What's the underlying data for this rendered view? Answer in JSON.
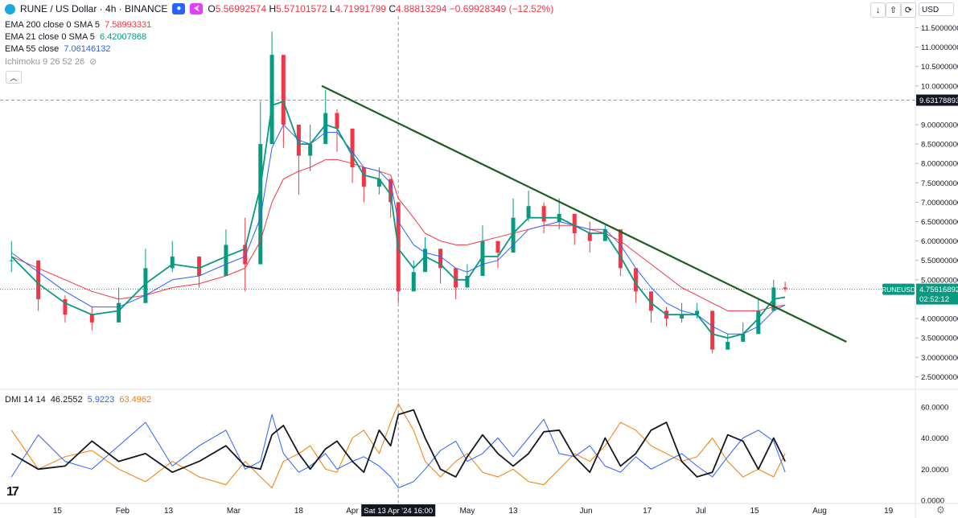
{
  "header": {
    "symbol_title": "RUNE / US Dollar · 4h · BINANCE",
    "ohlc": {
      "open_label": "O",
      "open": "5.56992574",
      "high_label": "H",
      "high": "5.57101572",
      "low_label": "L",
      "low": "4.71991799",
      "close_label": "C",
      "close": "4.88813294",
      "change": "−0.69928349 (−12.52%)"
    }
  },
  "toolbar": {
    "currency": "USD"
  },
  "indicators": [
    {
      "label": "EMA 200 close 0 SMA 5",
      "value": "7.58993331",
      "color": "#f23645"
    },
    {
      "label": "EMA 21 close 0 SMA 5",
      "value": "6.42007868",
      "color": "#089981"
    },
    {
      "label": "EMA 55 close",
      "value": "7.06146132",
      "color": "#2962ff"
    },
    {
      "label": "Ichimoku 9 26 52 26",
      "value": "",
      "color": "#9598a1"
    }
  ],
  "dmi_legend": {
    "label": "DMI 14 14",
    "adx": "46.2552",
    "plus_di": "5.9223",
    "minus_di": "63.4962",
    "adx_color": "#131722",
    "plus_color": "#2962ff",
    "minus_color": "#f57c00"
  },
  "price_axis": {
    "ticks": [
      "11.50000000",
      "11.00000000",
      "10.50000000",
      "10.00000000",
      "9.00000000",
      "8.50000000",
      "8.00000000",
      "7.50000000",
      "7.00000000",
      "6.50000000",
      "6.00000000",
      "5.50000000",
      "5.00000000",
      "4.00000000",
      "3.50000000",
      "3.00000000",
      "2.50000000"
    ],
    "crosshair_label": "9.63178893",
    "last_symbol": "RUNEUSD",
    "last_price": "4.75616892",
    "countdown": "02:52:12"
  },
  "dmi_axis": {
    "ticks": [
      "60.0000",
      "40.0000",
      "20.0000",
      "0.0000"
    ]
  },
  "time_axis": {
    "labels": [
      "15",
      "Feb",
      "13",
      "Mar",
      "18",
      "Apr",
      "May",
      "13",
      "Jun",
      "17",
      "Jul",
      "15",
      "Aug",
      "19"
    ],
    "crosshair_label": "Sat 13 Apr '24 16:00"
  },
  "chart_data": {
    "type": "candlestick",
    "interval": "4h",
    "price_ylim": [
      2.3,
      11.8
    ],
    "price_series": {
      "dates": [
        "2024-01-03",
        "2024-01-10",
        "2024-01-17",
        "2024-01-24",
        "2024-01-31",
        "2024-02-07",
        "2024-02-14",
        "2024-02-21",
        "2024-02-28",
        "2024-03-04",
        "2024-03-08",
        "2024-03-11",
        "2024-03-14",
        "2024-03-18",
        "2024-03-21",
        "2024-03-25",
        "2024-03-28",
        "2024-04-01",
        "2024-04-04",
        "2024-04-08",
        "2024-04-11",
        "2024-04-13",
        "2024-04-17",
        "2024-04-20",
        "2024-04-24",
        "2024-04-28",
        "2024-05-01",
        "2024-05-05",
        "2024-05-09",
        "2024-05-13",
        "2024-05-17",
        "2024-05-21",
        "2024-05-25",
        "2024-05-29",
        "2024-06-02",
        "2024-06-06",
        "2024-06-10",
        "2024-06-14",
        "2024-06-18",
        "2024-06-22",
        "2024-06-26",
        "2024-06-30",
        "2024-07-04",
        "2024-07-08",
        "2024-07-12",
        "2024-07-16",
        "2024-07-20",
        "2024-07-23"
      ],
      "close": [
        5.5,
        4.5,
        4.1,
        3.9,
        4.4,
        5.3,
        5.6,
        5.1,
        5.9,
        5.4,
        8.5,
        10.8,
        9.0,
        8.2,
        8.5,
        9.3,
        8.9,
        7.9,
        7.4,
        7.6,
        7.0,
        4.7,
        5.2,
        5.8,
        5.3,
        4.8,
        5.1,
        6.0,
        5.7,
        6.6,
        6.9,
        6.5,
        6.7,
        6.2,
        6.0,
        6.3,
        5.3,
        4.7,
        4.2,
        4.0,
        4.1,
        4.2,
        3.2,
        3.4,
        3.6,
        4.2,
        4.8,
        4.76
      ],
      "high": [
        6.0,
        5.2,
        4.6,
        4.3,
        4.8,
        5.8,
        6.0,
        5.6,
        6.3,
        6.6,
        9.6,
        11.4,
        10.3,
        8.8,
        9.0,
        9.9,
        9.4,
        8.4,
        7.9,
        7.9,
        7.5,
        5.6,
        5.5,
        6.1,
        5.7,
        5.3,
        5.4,
        6.4,
        6.0,
        7.1,
        7.3,
        7.0,
        7.1,
        6.6,
        6.5,
        6.4,
        6.2,
        5.0,
        4.5,
        4.3,
        4.4,
        4.4,
        3.6,
        3.6,
        3.9,
        4.5,
        5.0,
        4.95
      ],
      "low": [
        5.2,
        4.2,
        3.9,
        3.7,
        4.1,
        5.0,
        5.2,
        4.8,
        5.5,
        4.7,
        7.8,
        9.5,
        8.4,
        7.2,
        7.8,
        8.6,
        8.3,
        7.5,
        7.0,
        7.2,
        6.6,
        4.4,
        4.8,
        5.4,
        4.9,
        4.5,
        4.8,
        5.6,
        5.3,
        6.2,
        6.5,
        6.2,
        6.3,
        5.9,
        5.7,
        6.0,
        5.1,
        4.4,
        3.9,
        3.8,
        3.9,
        4.0,
        3.1,
        3.2,
        3.4,
        3.8,
        4.4,
        4.7
      ],
      "ema21": [
        5.6,
        4.9,
        4.4,
        4.1,
        4.2,
        4.9,
        5.4,
        5.3,
        5.6,
        5.8,
        7.4,
        9.5,
        9.6,
        8.5,
        8.5,
        9.0,
        8.9,
        8.2,
        7.7,
        7.6,
        7.2,
        5.8,
        5.3,
        5.6,
        5.4,
        5.0,
        5.0,
        5.6,
        5.6,
        6.2,
        6.6,
        6.6,
        6.6,
        6.4,
        6.2,
        6.2,
        5.6,
        4.9,
        4.4,
        4.1,
        4.1,
        4.1,
        3.6,
        3.5,
        3.6,
        4.0,
        4.5,
        4.55
      ],
      "ema55": [
        5.7,
        5.2,
        4.7,
        4.3,
        4.3,
        4.6,
        5.0,
        5.1,
        5.4,
        5.6,
        6.6,
        8.4,
        9.0,
        8.6,
        8.5,
        8.8,
        8.8,
        8.3,
        7.9,
        7.8,
        7.5,
        6.5,
        5.9,
        5.7,
        5.6,
        5.3,
        5.2,
        5.4,
        5.5,
        5.9,
        6.3,
        6.4,
        6.5,
        6.4,
        6.3,
        6.3,
        5.9,
        5.3,
        4.8,
        4.4,
        4.2,
        4.1,
        3.8,
        3.6,
        3.6,
        3.8,
        4.2,
        4.35
      ],
      "ema200": [
        5.6,
        5.3,
        5.0,
        4.7,
        4.5,
        4.6,
        4.8,
        4.9,
        5.1,
        5.3,
        6.0,
        7.0,
        7.6,
        7.8,
        7.9,
        8.1,
        8.1,
        8.0,
        7.9,
        7.8,
        7.7,
        7.1,
        6.6,
        6.2,
        6.0,
        5.9,
        5.9,
        6.0,
        6.1,
        6.2,
        6.3,
        6.4,
        6.4,
        6.4,
        6.3,
        6.2,
        6.0,
        5.7,
        5.4,
        5.1,
        4.8,
        4.6,
        4.4,
        4.2,
        4.2,
        4.2,
        4.3,
        4.35
      ]
    },
    "trendline": {
      "start": [
        "2024-03-24",
        10.0
      ],
      "end": [
        "2024-08-08",
        3.4
      ],
      "color": "#1b5e20"
    },
    "dmi": {
      "ylim": [
        0,
        64
      ],
      "dates": [
        "2024-01-03",
        "2024-01-10",
        "2024-01-17",
        "2024-01-24",
        "2024-01-31",
        "2024-02-07",
        "2024-02-14",
        "2024-02-21",
        "2024-02-28",
        "2024-03-04",
        "2024-03-08",
        "2024-03-11",
        "2024-03-14",
        "2024-03-18",
        "2024-03-21",
        "2024-03-25",
        "2024-03-28",
        "2024-04-01",
        "2024-04-04",
        "2024-04-08",
        "2024-04-11",
        "2024-04-13",
        "2024-04-17",
        "2024-04-20",
        "2024-04-24",
        "2024-04-28",
        "2024-05-01",
        "2024-05-05",
        "2024-05-09",
        "2024-05-13",
        "2024-05-17",
        "2024-05-21",
        "2024-05-25",
        "2024-05-29",
        "2024-06-02",
        "2024-06-06",
        "2024-06-10",
        "2024-06-14",
        "2024-06-18",
        "2024-06-22",
        "2024-06-26",
        "2024-06-30",
        "2024-07-04",
        "2024-07-08",
        "2024-07-12",
        "2024-07-16",
        "2024-07-20",
        "2024-07-23"
      ],
      "adx": [
        30,
        20,
        22,
        38,
        25,
        30,
        18,
        25,
        35,
        22,
        20,
        42,
        48,
        30,
        20,
        33,
        38,
        25,
        18,
        45,
        35,
        55,
        58,
        40,
        20,
        15,
        28,
        42,
        30,
        22,
        30,
        44,
        45,
        28,
        18,
        40,
        22,
        30,
        45,
        50,
        25,
        15,
        18,
        42,
        38,
        20,
        40,
        25
      ],
      "plus_di": [
        15,
        42,
        25,
        20,
        35,
        50,
        22,
        35,
        45,
        20,
        25,
        55,
        30,
        18,
        22,
        30,
        20,
        25,
        28,
        22,
        15,
        8,
        12,
        20,
        32,
        38,
        25,
        30,
        40,
        28,
        40,
        52,
        30,
        28,
        35,
        22,
        18,
        28,
        20,
        25,
        30,
        22,
        15,
        28,
        40,
        45,
        38,
        18
      ],
      "minus_di": [
        45,
        20,
        28,
        32,
        20,
        12,
        25,
        15,
        10,
        25,
        15,
        8,
        25,
        30,
        35,
        20,
        18,
        40,
        45,
        30,
        50,
        62,
        45,
        25,
        15,
        25,
        30,
        18,
        15,
        20,
        12,
        10,
        20,
        30,
        25,
        35,
        50,
        45,
        35,
        30,
        25,
        28,
        40,
        25,
        15,
        20,
        15,
        30
      ]
    }
  }
}
